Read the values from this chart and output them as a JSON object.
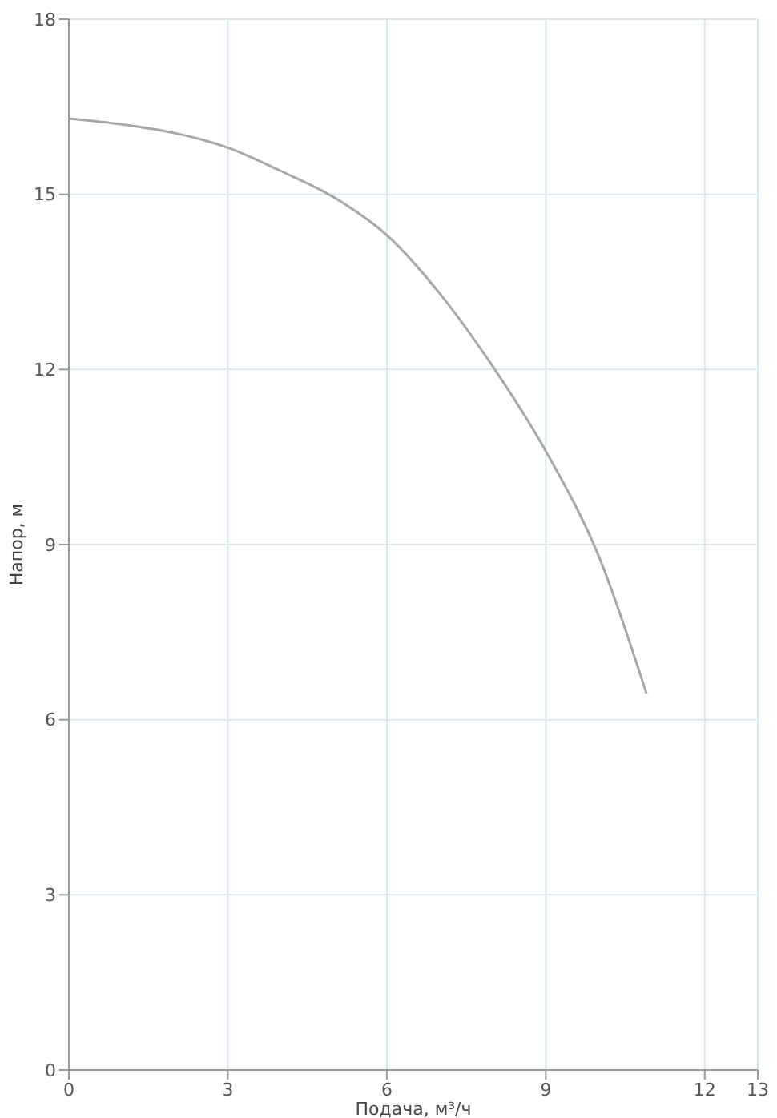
{
  "chart_data": {
    "type": "line",
    "xlabel": "Подача, м³/ч",
    "ylabel": "Напор, м",
    "series": [
      {
        "color": "#a6a6a6",
        "x": [
          0,
          1,
          2,
          3,
          4,
          5,
          6,
          7,
          8,
          9,
          10,
          10.9
        ],
        "values": [
          16.3,
          16.2,
          16.05,
          15.8,
          15.4,
          14.95,
          14.3,
          13.3,
          12.05,
          10.6,
          8.8,
          6.45
        ]
      }
    ],
    "xlim": [
      0,
      13
    ],
    "xticks": [
      0,
      3,
      6,
      9,
      12,
      13
    ],
    "ylim": [
      0,
      18
    ],
    "yticks": [
      0,
      3,
      6,
      9,
      12,
      15,
      18
    ],
    "grid": true,
    "marker": "none",
    "line_style": "solid"
  }
}
